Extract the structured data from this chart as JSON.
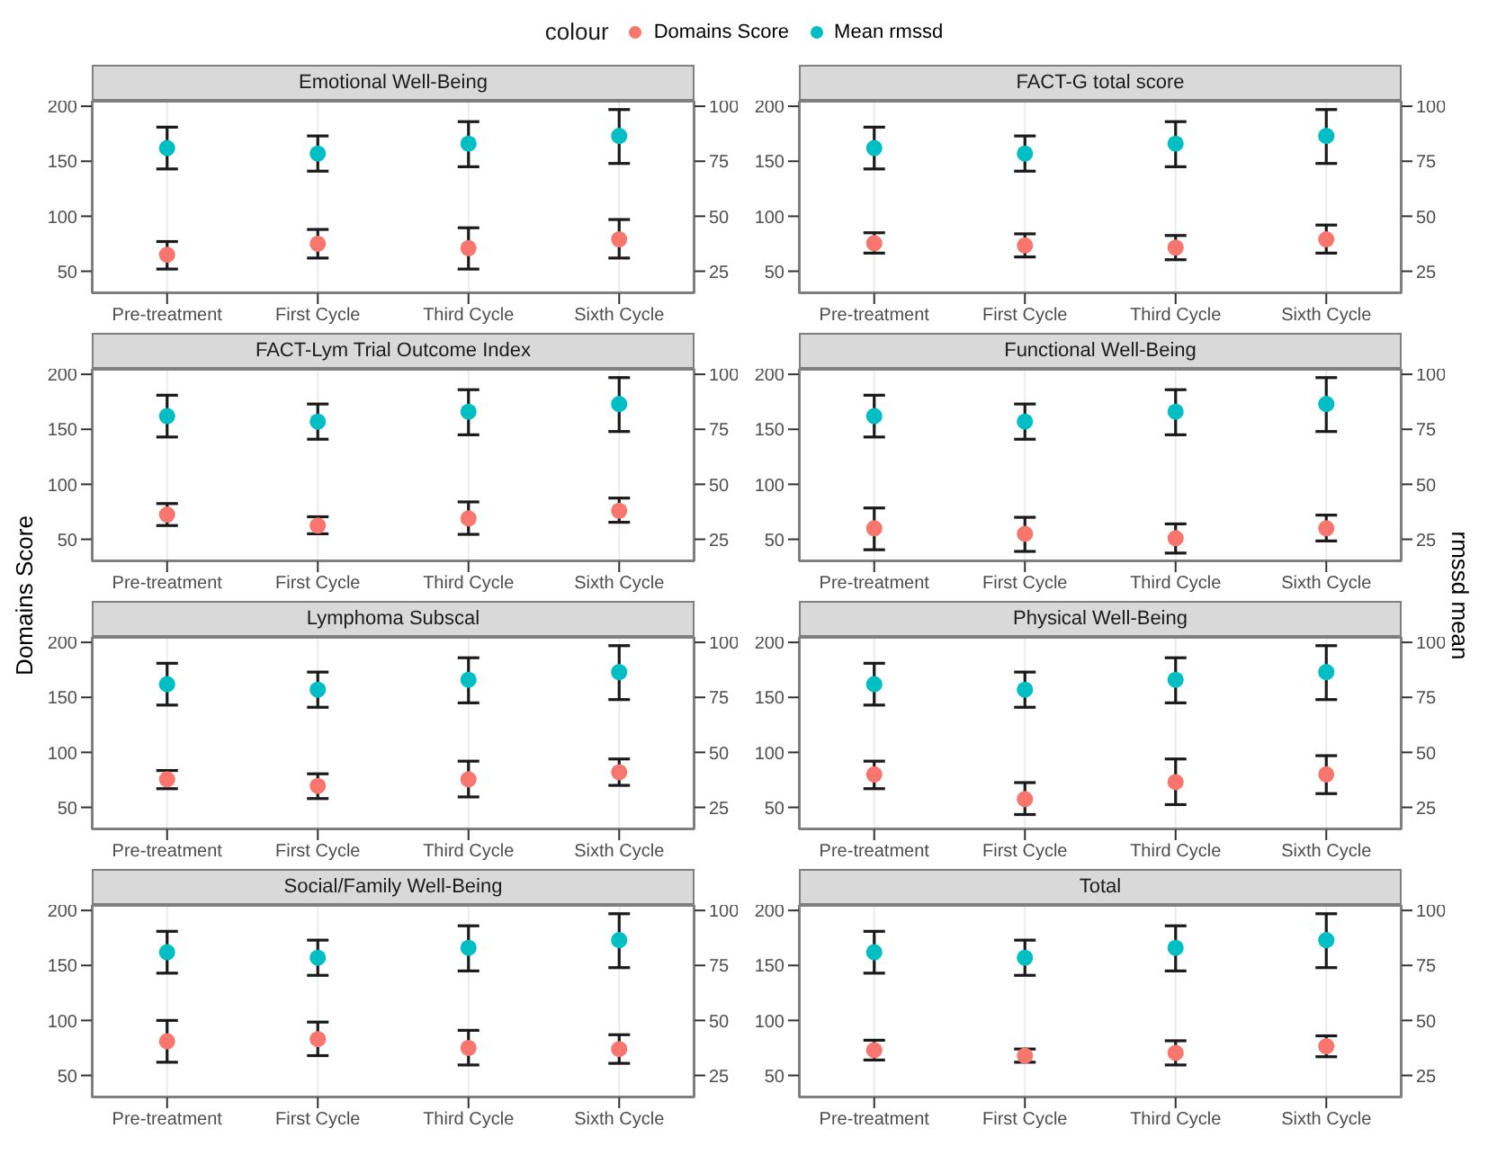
{
  "chart_data": [
    {
      "type": "scatter",
      "title": "Emotional Well-Being",
      "legend_title": "colour",
      "legend": "top",
      "categories": [
        "Pre-treatment",
        "First Cycle",
        "Third Cycle",
        "Sixth Cycle"
      ],
      "ylim": [
        30,
        205
      ],
      "yticks": [
        50,
        100,
        150,
        200
      ],
      "y2lim": [
        15,
        102.5
      ],
      "y2ticks": [
        25,
        50,
        75,
        100
      ],
      "grid": true,
      "marker": "circle",
      "series": [
        {
          "name": "Domains Score",
          "color": "#f8766d",
          "values": [
            65,
            75,
            71,
            79
          ],
          "errors": [
            [
              52,
              77
            ],
            [
              62,
              88
            ],
            [
              52,
              89.5
            ],
            [
              62,
              97
            ]
          ]
        },
        {
          "name": "Mean rmssd",
          "color": "#00bfc4",
          "axis": "y2",
          "values": [
            81,
            78.5,
            83,
            86.5
          ],
          "errors": [
            [
              71.5,
              90.5
            ],
            [
              70.5,
              86.5
            ],
            [
              72.5,
              93
            ],
            [
              74,
              98.5
            ]
          ]
        }
      ]
    },
    {
      "type": "scatter",
      "title": "FACT-G total score",
      "categories": [
        "Pre-treatment",
        "First Cycle",
        "Third Cycle",
        "Sixth Cycle"
      ],
      "ylim": [
        30,
        205
      ],
      "yticks": [
        50,
        100,
        150,
        200
      ],
      "y2lim": [
        15,
        102.5
      ],
      "y2ticks": [
        25,
        50,
        75,
        100
      ],
      "grid": true,
      "marker": "circle",
      "series": [
        {
          "color": "#f8766d",
          "values": [
            75.5,
            73.5,
            71.5,
            79
          ],
          "errors": [
            [
              66.5,
              85
            ],
            [
              63,
              84
            ],
            [
              60.5,
              82.5
            ],
            [
              66.5,
              92
            ]
          ]
        },
        {
          "color": "#00bfc4",
          "axis": "y2",
          "values": [
            81,
            78.5,
            83,
            86.5
          ],
          "errors": [
            [
              71.5,
              90.5
            ],
            [
              70.5,
              86.5
            ],
            [
              72.5,
              93
            ],
            [
              74,
              98.5
            ]
          ]
        }
      ]
    },
    {
      "type": "scatter",
      "title": "FACT-Lym Trial Outcome Index",
      "ylabel": "Domains Score",
      "categories": [
        "Pre-treatment",
        "First Cycle",
        "Third Cycle",
        "Sixth Cycle"
      ],
      "ylim": [
        30,
        205
      ],
      "yticks": [
        50,
        100,
        150,
        200
      ],
      "y2lim": [
        15,
        102.5
      ],
      "y2ticks": [
        25,
        50,
        75,
        100
      ],
      "grid": true,
      "marker": "circle",
      "series": [
        {
          "color": "#f8766d",
          "values": [
            72.5,
            62.5,
            69,
            76
          ],
          "errors": [
            [
              62.5,
              82.5
            ],
            [
              55,
              70.5
            ],
            [
              54.5,
              84
            ],
            [
              65.5,
              87.5
            ]
          ]
        },
        {
          "color": "#00bfc4",
          "axis": "y2",
          "values": [
            81,
            78.5,
            83,
            86.5
          ],
          "errors": [
            [
              71.5,
              90.5
            ],
            [
              70.5,
              86.5
            ],
            [
              72.5,
              93
            ],
            [
              74,
              98.5
            ]
          ]
        }
      ]
    },
    {
      "type": "scatter",
      "title": "Functional Well-Being",
      "y2label": "rmssd mean",
      "categories": [
        "Pre-treatment",
        "First Cycle",
        "Third Cycle",
        "Sixth Cycle"
      ],
      "ylim": [
        30,
        205
      ],
      "yticks": [
        50,
        100,
        150,
        200
      ],
      "y2lim": [
        15,
        102.5
      ],
      "y2ticks": [
        25,
        50,
        75,
        100
      ],
      "grid": true,
      "marker": "circle",
      "series": [
        {
          "color": "#f8766d",
          "values": [
            60,
            55,
            51,
            60
          ],
          "errors": [
            [
              40.5,
              78.5
            ],
            [
              39,
              70
            ],
            [
              37.5,
              64
            ],
            [
              48.5,
              72
            ]
          ]
        },
        {
          "color": "#00bfc4",
          "axis": "y2",
          "values": [
            81,
            78.5,
            83,
            86.5
          ],
          "errors": [
            [
              71.5,
              90.5
            ],
            [
              70.5,
              86.5
            ],
            [
              72.5,
              93
            ],
            [
              74,
              98.5
            ]
          ]
        }
      ]
    },
    {
      "type": "scatter",
      "title": "Lymphoma Subscal",
      "categories": [
        "Pre-treatment",
        "First Cycle",
        "Third Cycle",
        "Sixth Cycle"
      ],
      "ylim": [
        30,
        205
      ],
      "yticks": [
        50,
        100,
        150,
        200
      ],
      "y2lim": [
        15,
        102.5
      ],
      "y2ticks": [
        25,
        50,
        75,
        100
      ],
      "grid": true,
      "marker": "circle",
      "series": [
        {
          "color": "#f8766d",
          "values": [
            75.5,
            69.5,
            75.5,
            82
          ],
          "errors": [
            [
              67,
              83.5
            ],
            [
              58,
              80.5
            ],
            [
              59.5,
              92
            ],
            [
              70,
              94
            ]
          ]
        },
        {
          "color": "#00bfc4",
          "axis": "y2",
          "values": [
            81,
            78.5,
            83,
            86.5
          ],
          "errors": [
            [
              71.5,
              90.5
            ],
            [
              70.5,
              86.5
            ],
            [
              72.5,
              93
            ],
            [
              74,
              98.5
            ]
          ]
        }
      ]
    },
    {
      "type": "scatter",
      "title": "Physical Well-Being",
      "categories": [
        "Pre-treatment",
        "First Cycle",
        "Third Cycle",
        "Sixth Cycle"
      ],
      "ylim": [
        30,
        205
      ],
      "yticks": [
        50,
        100,
        150,
        200
      ],
      "y2lim": [
        15,
        102.5
      ],
      "y2ticks": [
        25,
        50,
        75,
        100
      ],
      "grid": true,
      "marker": "circle",
      "series": [
        {
          "color": "#f8766d",
          "values": [
            80,
            57.5,
            73,
            80
          ],
          "errors": [
            [
              67,
              92
            ],
            [
              43.5,
              72.5
            ],
            [
              52.5,
              94
            ],
            [
              62.5,
              97
            ]
          ]
        },
        {
          "color": "#00bfc4",
          "axis": "y2",
          "values": [
            81,
            78.5,
            83,
            86.5
          ],
          "errors": [
            [
              71.5,
              90.5
            ],
            [
              70.5,
              86.5
            ],
            [
              72.5,
              93
            ],
            [
              74,
              98.5
            ]
          ]
        }
      ]
    },
    {
      "type": "scatter",
      "title": "Social/Family Well-Being",
      "categories": [
        "Pre-treatment",
        "First Cycle",
        "Third Cycle",
        "Sixth Cycle"
      ],
      "ylim": [
        30,
        205
      ],
      "yticks": [
        50,
        100,
        150,
        200
      ],
      "y2lim": [
        15,
        102.5
      ],
      "y2ticks": [
        25,
        50,
        75,
        100
      ],
      "grid": true,
      "marker": "circle",
      "series": [
        {
          "color": "#f8766d",
          "values": [
            81,
            83,
            75,
            74
          ],
          "errors": [
            [
              62,
              100
            ],
            [
              68,
              98.5
            ],
            [
              59.5,
              91
            ],
            [
              61,
              87
            ]
          ]
        },
        {
          "color": "#00bfc4",
          "axis": "y2",
          "values": [
            81,
            78.5,
            83,
            86.5
          ],
          "errors": [
            [
              71.5,
              90.5
            ],
            [
              70.5,
              86.5
            ],
            [
              72.5,
              93
            ],
            [
              74,
              98.5
            ]
          ]
        }
      ]
    },
    {
      "type": "scatter",
      "title": "Total",
      "categories": [
        "Pre-treatment",
        "First Cycle",
        "Third Cycle",
        "Sixth Cycle"
      ],
      "ylim": [
        30,
        205
      ],
      "yticks": [
        50,
        100,
        150,
        200
      ],
      "y2lim": [
        15,
        102.5
      ],
      "y2ticks": [
        25,
        50,
        75,
        100
      ],
      "grid": true,
      "marker": "circle",
      "series": [
        {
          "color": "#f8766d",
          "values": [
            73,
            68,
            70.5,
            76.5
          ],
          "errors": [
            [
              64,
              82
            ],
            [
              62,
              74
            ],
            [
              59.5,
              81.5
            ],
            [
              67,
              86
            ]
          ]
        },
        {
          "color": "#00bfc4",
          "axis": "y2",
          "values": [
            81,
            78.5,
            83,
            86.5
          ],
          "errors": [
            [
              71.5,
              90.5
            ],
            [
              70.5,
              86.5
            ],
            [
              72.5,
              93
            ],
            [
              74,
              98.5
            ]
          ]
        }
      ]
    }
  ]
}
